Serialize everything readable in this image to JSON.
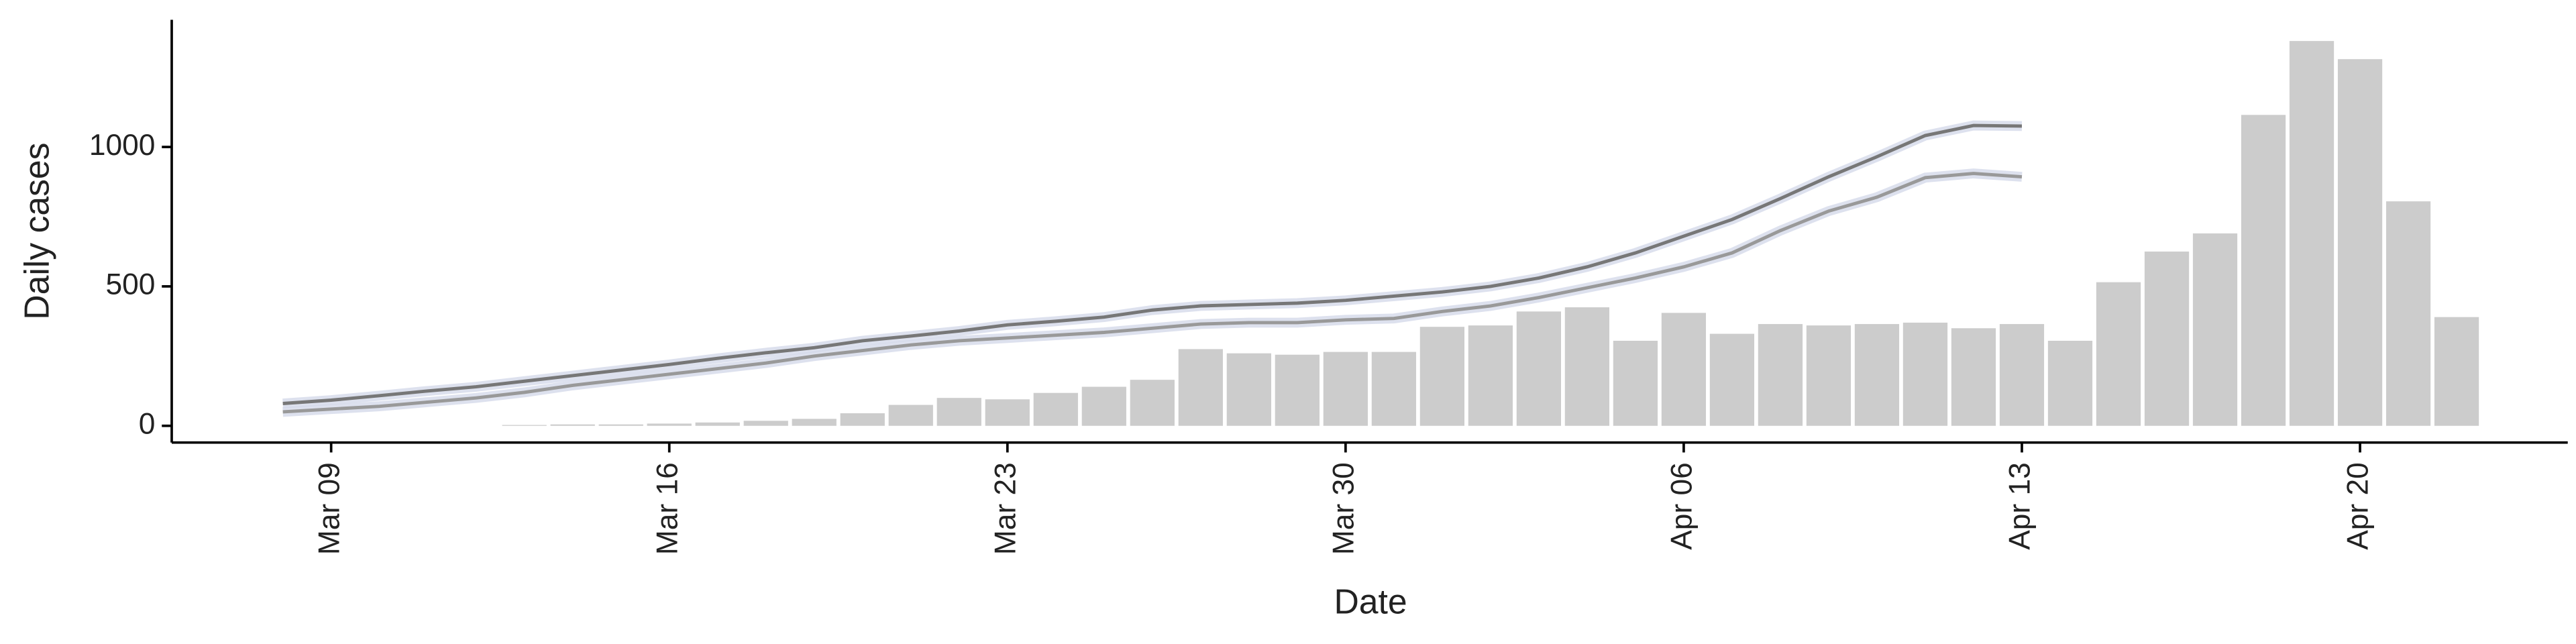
{
  "chart_data": {
    "type": "bar",
    "x_label": "Date",
    "y_label": "Daily cases",
    "categories": [
      "Mar 08",
      "Mar 09",
      "Mar 10",
      "Mar 11",
      "Mar 12",
      "Mar 13",
      "Mar 14",
      "Mar 15",
      "Mar 16",
      "Mar 17",
      "Mar 18",
      "Mar 19",
      "Mar 20",
      "Mar 21",
      "Mar 22",
      "Mar 23",
      "Mar 24",
      "Mar 25",
      "Mar 26",
      "Mar 27",
      "Mar 28",
      "Mar 29",
      "Mar 30",
      "Mar 31",
      "Apr 01",
      "Apr 02",
      "Apr 03",
      "Apr 04",
      "Apr 05",
      "Apr 06",
      "Apr 07",
      "Apr 08",
      "Apr 09",
      "Apr 10",
      "Apr 11",
      "Apr 12",
      "Apr 13",
      "Apr 14",
      "Apr 15",
      "Apr 16",
      "Apr 17",
      "Apr 18",
      "Apr 19",
      "Apr 20",
      "Apr 21",
      "Apr 22"
    ],
    "series": [
      {
        "type": "bar",
        "color": "#cccccc",
        "values": [
          null,
          null,
          null,
          null,
          null,
          3,
          5,
          5,
          8,
          12,
          18,
          25,
          45,
          75,
          100,
          95,
          118,
          140,
          165,
          275,
          260,
          255,
          265,
          265,
          355,
          360,
          410,
          425,
          305,
          405,
          330,
          365,
          360,
          365,
          370,
          350,
          365,
          305,
          515,
          625,
          690,
          1115,
          1380,
          1315,
          805,
          390
        ]
      },
      {
        "type": "line",
        "color": "#777777",
        "values": [
          80,
          92,
          108,
          125,
          140,
          160,
          180,
          200,
          220,
          242,
          262,
          280,
          305,
          322,
          340,
          362,
          375,
          390,
          415,
          430,
          435,
          440,
          450,
          465,
          480,
          500,
          530,
          570,
          620,
          680,
          740,
          815,
          893,
          965,
          1041,
          1077,
          1075,
          null,
          null,
          null,
          null,
          null,
          null,
          null,
          null,
          null
        ]
      },
      {
        "type": "line",
        "color": "#999999",
        "values": [
          50,
          60,
          70,
          85,
          100,
          120,
          145,
          165,
          185,
          205,
          225,
          250,
          270,
          290,
          305,
          315,
          325,
          335,
          350,
          365,
          370,
          370,
          380,
          385,
          410,
          430,
          460,
          495,
          530,
          570,
          620,
          700,
          770,
          820,
          890,
          905,
          893,
          null,
          null,
          null,
          null,
          null,
          null,
          null,
          null,
          null
        ]
      }
    ],
    "xticks": [
      "Mar 09",
      "Mar 16",
      "Mar 23",
      "Mar 30",
      "Apr 06",
      "Apr 13",
      "Apr 20"
    ],
    "ylim": [
      -60,
      1456
    ],
    "yticks": [
      0,
      500,
      1000
    ]
  }
}
